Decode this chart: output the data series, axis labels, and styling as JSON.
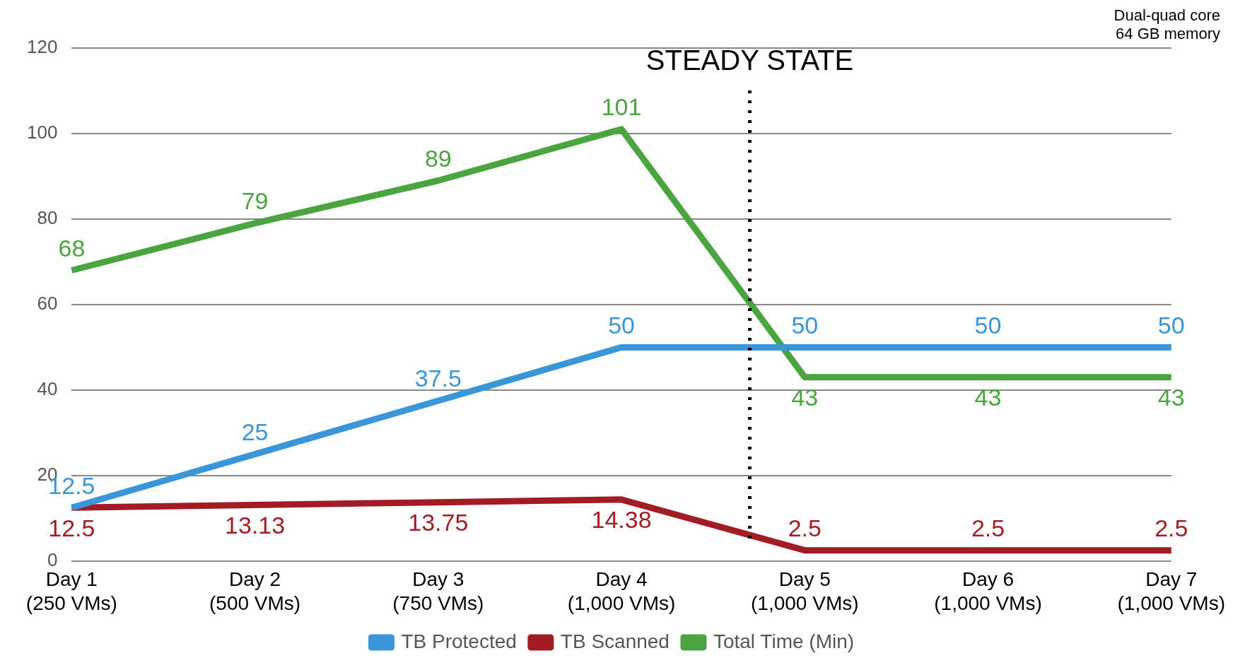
{
  "chart_data": {
    "type": "line",
    "categories": [
      "Day 1 (250 VMs)",
      "Day 2 (500 VMs)",
      "Day 3 (750 VMs)",
      "Day 4 (1,000 VMs)",
      "Day 5 (1,000 VMs)",
      "Day 6 (1,000 VMs)",
      "Day 7 (1,000 VMs)"
    ],
    "series": [
      {
        "name": "TB Protected",
        "color": "#3a96d8",
        "values": [
          12.5,
          25,
          37.5,
          50,
          50,
          50,
          50
        ]
      },
      {
        "name": "TB Scanned",
        "color": "#a31c25",
        "values": [
          12.5,
          13.13,
          13.75,
          14.38,
          2.5,
          2.5,
          2.5
        ]
      },
      {
        "name": "Total Time (Min)",
        "color": "#4aa540",
        "values": [
          68,
          79,
          89,
          101,
          43,
          43,
          43
        ]
      }
    ],
    "ylim": [
      0,
      120
    ],
    "yticks": [
      0,
      20,
      40,
      60,
      80,
      100,
      120
    ],
    "grid": "y",
    "legend": "bottom",
    "marker": "none",
    "line_style": "solid",
    "data_labels": true,
    "ref_lines": [
      {
        "axis": "x",
        "value": "Day 5 (1,000 VMs)",
        "label": "STEADY STATE",
        "line_style": "dotted",
        "color": "#000000"
      }
    ],
    "annotations": [
      "Dual-quad core",
      "64 GB memory"
    ]
  }
}
